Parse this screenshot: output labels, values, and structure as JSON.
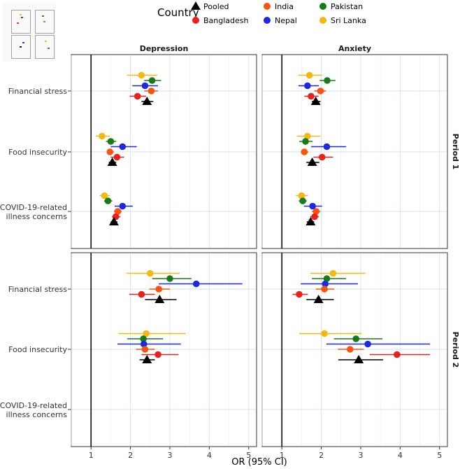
{
  "chart_data": {
    "type": "forest",
    "legend": {
      "title": "Country",
      "entries": [
        {
          "name": "Pooled",
          "color": "#000000",
          "shape": "triangle"
        },
        {
          "name": "India",
          "color": "#F8540F",
          "shape": "circle"
        },
        {
          "name": "Pakistan",
          "color": "#167D16",
          "shape": "circle"
        },
        {
          "name": "Bangladesh",
          "color": "#E8211F",
          "shape": "circle"
        },
        {
          "name": "Nepal",
          "color": "#1C28E6",
          "shape": "circle"
        },
        {
          "name": "Sri Lanka",
          "color": "#F4B814",
          "shape": "circle"
        }
      ]
    },
    "columns": [
      "Depression",
      "Anxiety"
    ],
    "rows": [
      "Period 1",
      "Period 2"
    ],
    "categories": [
      "Financial stress",
      "Food insecurity",
      "COVID-19-related|illness concerns"
    ],
    "xlabel": "OR (95% CI)",
    "xlim": [
      0.5,
      5.2
    ],
    "xticks": [
      1,
      2,
      3,
      4,
      5
    ],
    "reference_line": 1,
    "panels": [
      {
        "column": "Depression",
        "row": "Period 1",
        "series": {
          "Financial stress": {
            "Sri Lanka": [
              2.28,
              1.92,
              2.68
            ],
            "Pakistan": [
              2.55,
              2.35,
              2.78
            ],
            "Nepal": [
              2.37,
              2.05,
              2.7
            ],
            "India": [
              2.53,
              2.35,
              2.7
            ],
            "Bangladesh": [
              2.18,
              1.98,
              2.4
            ],
            "Pooled": [
              2.42,
              2.28,
              2.58
            ]
          },
          "Food insecurity": {
            "Sri Lanka": [
              1.28,
              1.12,
              1.48
            ],
            "Pakistan": [
              1.5,
              1.38,
              1.64
            ],
            "Nepal": [
              1.8,
              1.5,
              2.16
            ],
            "India": [
              1.48,
              1.4,
              1.58
            ],
            "Bangladesh": [
              1.66,
              1.5,
              1.84
            ],
            "Pooled": [
              1.54,
              1.45,
              1.64
            ]
          },
          "COVID-19-related|illness concerns": {
            "Sri Lanka": [
              1.34,
              1.22,
              1.48
            ],
            "Pakistan": [
              1.43,
              1.33,
              1.54
            ],
            "Nepal": [
              1.8,
              1.6,
              2.06
            ],
            "India": [
              1.68,
              1.58,
              1.78
            ],
            "Bangladesh": [
              1.63,
              1.53,
              1.75
            ],
            "Pooled": [
              1.58,
              1.5,
              1.67
            ]
          }
        }
      },
      {
        "column": "Anxiety",
        "row": "Period 1",
        "series": {
          "Financial stress": {
            "Sri Lanka": [
              1.7,
              1.42,
              2.02
            ],
            "Pakistan": [
              2.15,
              1.96,
              2.36
            ],
            "Nepal": [
              1.65,
              1.42,
              1.94
            ],
            "India": [
              1.98,
              1.82,
              2.12
            ],
            "Bangladesh": [
              1.74,
              1.57,
              1.93
            ],
            "Pooled": [
              1.86,
              1.76,
              1.98
            ]
          },
          "Food insecurity": {
            "Sri Lanka": [
              1.65,
              1.38,
              1.98
            ],
            "Pakistan": [
              1.6,
              1.44,
              1.78
            ],
            "Nepal": [
              2.14,
              1.74,
              2.63
            ],
            "India": [
              1.57,
              1.48,
              1.67
            ],
            "Bangladesh": [
              2.02,
              1.8,
              2.3
            ],
            "Pooled": [
              1.77,
              1.62,
              1.95
            ]
          },
          "COVID-19-related|illness concerns": {
            "Sri Lanka": [
              1.5,
              1.36,
              1.66
            ],
            "Pakistan": [
              1.53,
              1.43,
              1.63
            ],
            "Nepal": [
              1.78,
              1.56,
              2.02
            ],
            "India": [
              1.87,
              1.76,
              1.98
            ],
            "Bangladesh": [
              1.83,
              1.72,
              1.94
            ],
            "Pooled": [
              1.73,
              1.63,
              1.82
            ]
          }
        }
      },
      {
        "column": "Depression",
        "row": "Period 2",
        "series": {
          "Financial stress": {
            "Sri Lanka": [
              2.5,
              1.9,
              3.25
            ],
            "Pakistan": [
              3.0,
              2.55,
              3.55
            ],
            "Nepal": [
              3.67,
              2.72,
              4.84
            ],
            "India": [
              2.72,
              2.48,
              3.0
            ],
            "Bangladesh": [
              2.28,
              1.97,
              2.62
            ],
            "Pooled": [
              2.74,
              2.37,
              3.17
            ]
          },
          "Food insecurity": {
            "Sri Lanka": [
              2.4,
              1.7,
              3.4
            ],
            "Pakistan": [
              2.33,
              1.92,
              2.83
            ],
            "Nepal": [
              2.34,
              1.67,
              3.28
            ],
            "India": [
              2.37,
              2.14,
              2.62
            ],
            "Bangladesh": [
              2.7,
              2.28,
              3.22
            ],
            "Pooled": [
              2.42,
              2.23,
              2.62
            ]
          },
          "COVID-19-related|illness concerns": {}
        }
      },
      {
        "column": "Anxiety",
        "row": "Period 2",
        "series": {
          "Financial stress": {
            "Sri Lanka": [
              2.3,
              1.72,
              3.12
            ],
            "Pakistan": [
              2.14,
              1.76,
              2.63
            ],
            "Nepal": [
              2.1,
              1.48,
              2.93
            ],
            "India": [
              2.08,
              1.86,
              2.33
            ],
            "Bangladesh": [
              1.44,
              1.27,
              1.66
            ],
            "Pooled": [
              1.93,
              1.62,
              2.32
            ]
          },
          "Food insecurity": {
            "Sri Lanka": [
              2.08,
              1.44,
              3.02
            ],
            "Pakistan": [
              2.88,
              2.32,
              3.55
            ],
            "Nepal": [
              3.18,
              2.13,
              4.76
            ],
            "India": [
              2.73,
              2.42,
              3.08
            ],
            "Bangladesh": [
              3.92,
              3.23,
              4.76
            ],
            "Pooled": [
              2.95,
              2.43,
              3.57
            ]
          },
          "COVID-19-related|illness concerns": {}
        }
      }
    ],
    "offsets": {
      "Sri Lanka": -3,
      "Pakistan": -2,
      "Nepal": -1,
      "India": 0,
      "Bangladesh": 1,
      "Pooled": 2
    }
  }
}
